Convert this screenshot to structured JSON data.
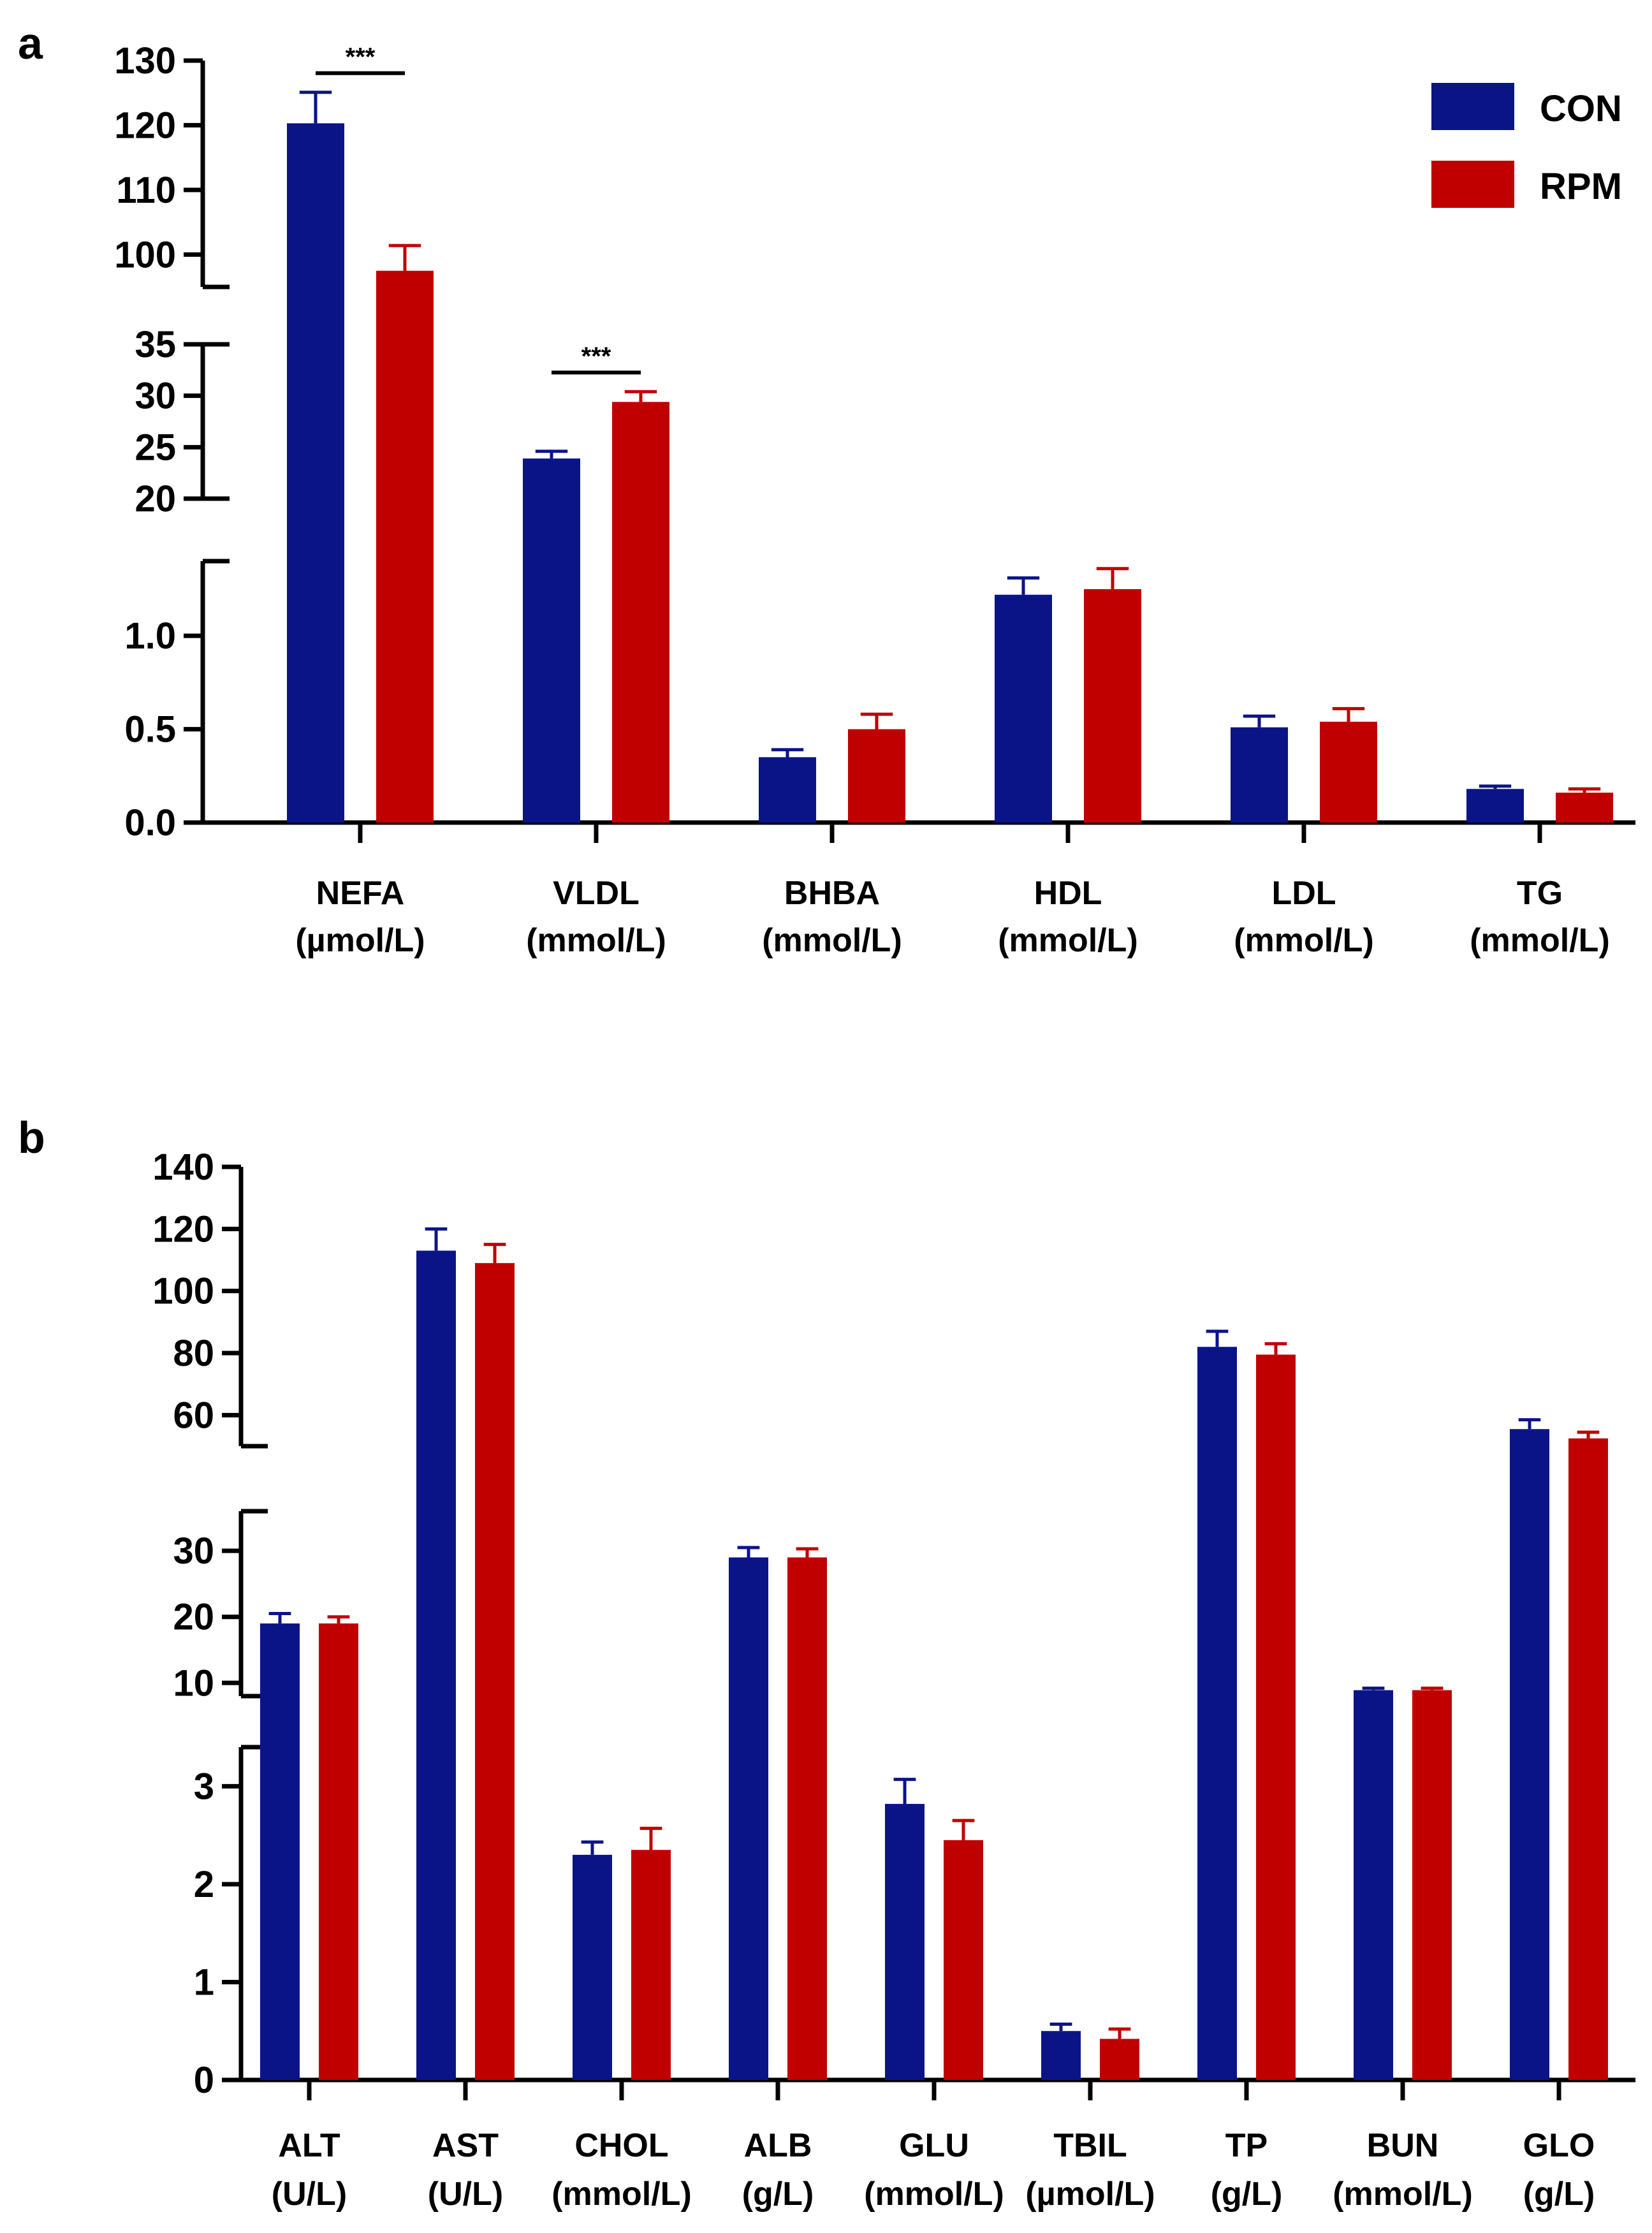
{
  "colors": {
    "CON": "#0b1487",
    "RPM": "#c00000",
    "axis": "#000000"
  },
  "legend": {
    "items": [
      {
        "label": "CON",
        "color": "#0b1487"
      },
      {
        "label": "RPM",
        "color": "#c00000"
      }
    ]
  },
  "chart_data": [
    {
      "type": "bar",
      "panel_label": "a",
      "categories": [
        [
          "NEFA",
          "(µmol/L)"
        ],
        [
          "VLDL",
          "(mmol/L)"
        ],
        [
          "BHBA",
          "(mmol/L)"
        ],
        [
          "HDL",
          "(mmol/L)"
        ],
        [
          "LDL",
          "(mmol/L)"
        ],
        [
          "TG",
          "(mmol/L)"
        ]
      ],
      "series": [
        {
          "name": "CON",
          "values": [
            120.3,
            23.9,
            0.35,
            1.22,
            0.51,
            0.18
          ],
          "errors": [
            4.8,
            0.7,
            0.04,
            0.09,
            0.06,
            0.015
          ]
        },
        {
          "name": "RPM",
          "values": [
            97.5,
            29.4,
            0.5,
            1.25,
            0.54,
            0.16
          ],
          "errors": [
            3.9,
            1.0,
            0.08,
            0.11,
            0.07,
            0.02
          ]
        }
      ],
      "y_segments": [
        {
          "range": [
            95,
            130
          ],
          "ticks": [
            100,
            110,
            120,
            130
          ],
          "tick_labels": [
            "100",
            "110",
            "120",
            "130"
          ]
        },
        {
          "range": [
            20,
            35
          ],
          "ticks": [
            20,
            25,
            30,
            35
          ],
          "tick_labels": [
            "20",
            "25",
            "30",
            "35"
          ]
        },
        {
          "range": [
            0,
            1.4
          ],
          "ticks": [
            0,
            0.5,
            1.0
          ],
          "tick_labels": [
            "0.0",
            "0.5",
            "1.0"
          ]
        }
      ],
      "significance": [
        {
          "category": 0,
          "label": "***"
        },
        {
          "category": 1,
          "label": "***"
        }
      ],
      "legend_position": "top-right",
      "xlabel": "",
      "ylabel": "",
      "title": ""
    },
    {
      "type": "bar",
      "panel_label": "b",
      "categories": [
        [
          "ALT",
          "(U/L)"
        ],
        [
          "AST",
          "(U/L)"
        ],
        [
          "CHOL",
          "(mmol/L)"
        ],
        [
          "ALB",
          "(g/L)"
        ],
        [
          "GLU",
          "(mmol/L)"
        ],
        [
          "TBIL",
          "(µmol/L)"
        ],
        [
          "TP",
          "(g/L)"
        ],
        [
          "BUN",
          "(mmol/L)"
        ],
        [
          "GLO",
          "(g/L)"
        ]
      ],
      "series": [
        {
          "name": "CON",
          "values": [
            19.0,
            113.0,
            2.3,
            29.0,
            2.82,
            0.5,
            82.0,
            8.9,
            55.5
          ],
          "errors": [
            1.5,
            7.0,
            0.13,
            1.5,
            0.25,
            0.07,
            5.0,
            0.3,
            3.0
          ]
        },
        {
          "name": "RPM",
          "values": [
            19.0,
            109.0,
            2.35,
            29.0,
            2.45,
            0.42,
            79.5,
            8.9,
            52.5
          ],
          "errors": [
            1.0,
            6.0,
            0.22,
            1.3,
            0.2,
            0.1,
            3.5,
            0.3,
            2.0
          ]
        }
      ],
      "y_segments": [
        {
          "range": [
            50,
            140
          ],
          "ticks": [
            60,
            80,
            100,
            120,
            140
          ],
          "tick_labels": [
            "60",
            "80",
            "100",
            "120",
            "140"
          ]
        },
        {
          "range": [
            8,
            36
          ],
          "ticks": [
            10,
            20,
            30
          ],
          "tick_labels": [
            "10",
            "20",
            "30"
          ]
        },
        {
          "range": [
            0,
            3.4
          ],
          "ticks": [
            0,
            1,
            2,
            3
          ],
          "tick_labels": [
            "0",
            "1",
            "2",
            "3"
          ]
        }
      ],
      "significance": [],
      "legend_position": "none",
      "xlabel": "",
      "ylabel": "",
      "title": ""
    }
  ]
}
